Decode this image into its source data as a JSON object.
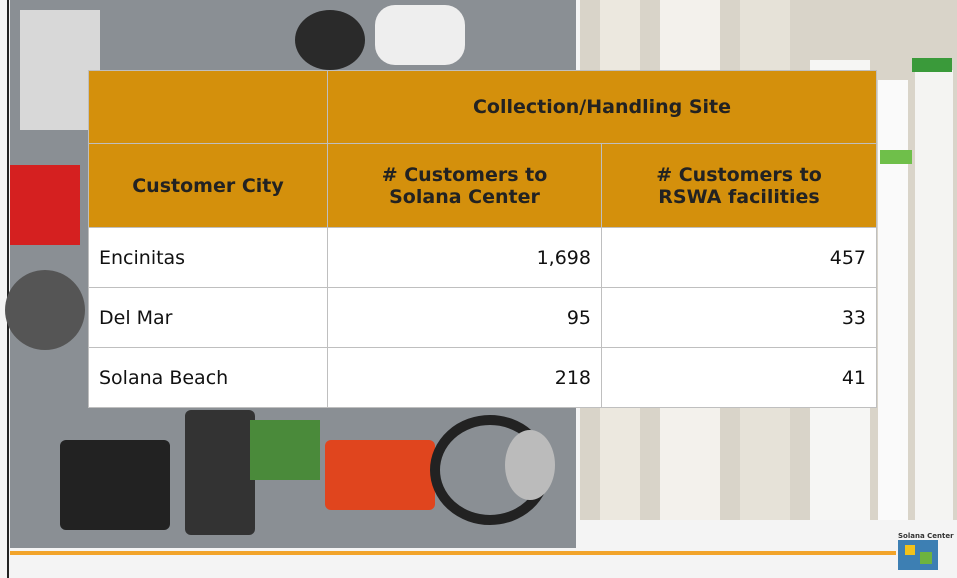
{
  "table": {
    "group_header": "Collection/Handling Site",
    "columns": [
      "Customer City",
      "# Customers to Solana Center",
      "# Customers to RSWA facilities"
    ],
    "rows": [
      [
        "Encinitas",
        "1,698",
        "457"
      ],
      [
        "Del Mar",
        "95",
        "33"
      ],
      [
        "Solana Beach",
        "218",
        "41"
      ]
    ]
  },
  "logo": "Solana Center"
}
